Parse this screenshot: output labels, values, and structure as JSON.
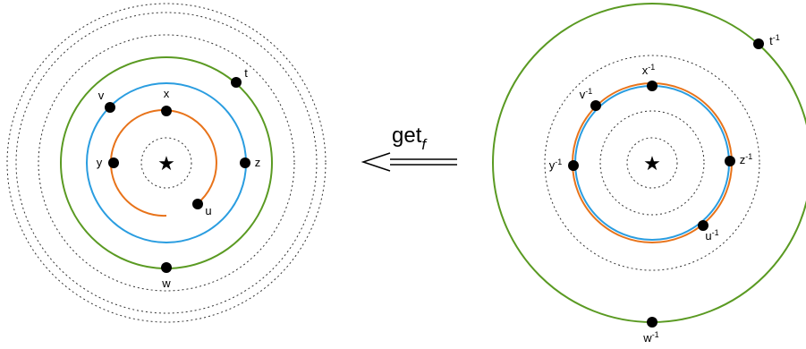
{
  "colors": {
    "orange": "#e8731a",
    "blue": "#2a9de0",
    "green": "#5a9a22",
    "dotted": "#333333",
    "point": "#000000"
  },
  "center_icon": "star-icon",
  "arrow": {
    "label": "get",
    "subscript": "f",
    "direction": "left"
  },
  "left": {
    "points": [
      {
        "id": "x",
        "label": "x",
        "sup": ""
      },
      {
        "id": "v",
        "label": "v",
        "sup": ""
      },
      {
        "id": "t",
        "label": "t",
        "sup": ""
      },
      {
        "id": "y",
        "label": "y",
        "sup": ""
      },
      {
        "id": "z",
        "label": "z",
        "sup": ""
      },
      {
        "id": "u",
        "label": "u",
        "sup": ""
      },
      {
        "id": "w",
        "label": "w",
        "sup": ""
      }
    ]
  },
  "right": {
    "points": [
      {
        "id": "x",
        "label": "x",
        "sup": "-1"
      },
      {
        "id": "v",
        "label": "v",
        "sup": "-1"
      },
      {
        "id": "t",
        "label": "t",
        "sup": "-1"
      },
      {
        "id": "y",
        "label": "y",
        "sup": "-1"
      },
      {
        "id": "z",
        "label": "z",
        "sup": "-1"
      },
      {
        "id": "u",
        "label": "u",
        "sup": "-1"
      },
      {
        "id": "w",
        "label": "w",
        "sup": "-1"
      }
    ]
  }
}
